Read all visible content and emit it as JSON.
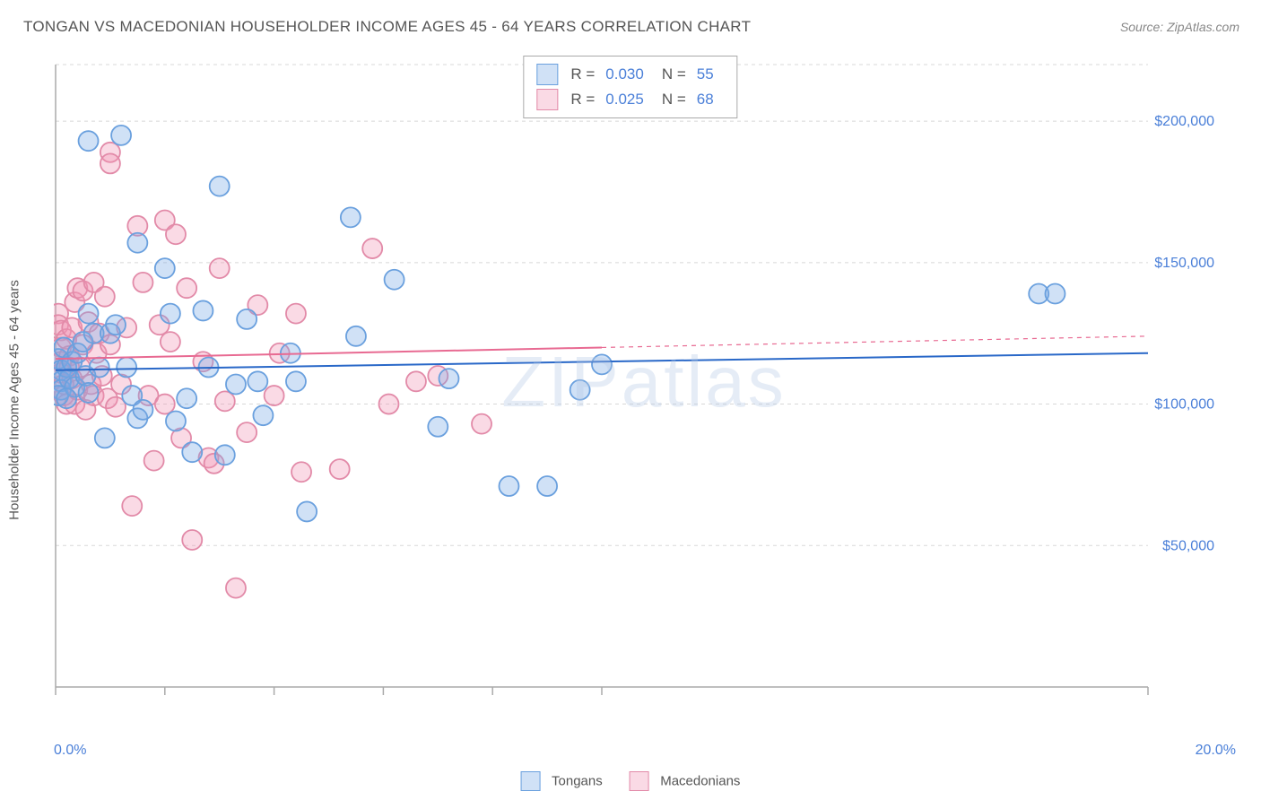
{
  "title": "TONGAN VS MACEDONIAN HOUSEHOLDER INCOME AGES 45 - 64 YEARS CORRELATION CHART",
  "source": "Source: ZipAtlas.com",
  "y_axis_label": "Householder Income Ages 45 - 64 years",
  "watermark": "ZIPatlas",
  "chart": {
    "type": "scatter",
    "background_color": "#ffffff",
    "grid_color": "#d8d8d8",
    "axis_color": "#aaaaaa",
    "xlim": [
      0,
      20
    ],
    "ylim": [
      0,
      220000
    ],
    "y_ticks": [
      50000,
      100000,
      150000,
      200000
    ],
    "y_tick_labels": [
      "$50,000",
      "$100,000",
      "$150,000",
      "$200,000"
    ],
    "y_tick_color": "#4a7fd8",
    "x_tick_positions": [
      0,
      2,
      4,
      6,
      8,
      10,
      20
    ],
    "x_start_label": "0.0%",
    "x_end_label": "20.0%",
    "marker_radius": 11,
    "marker_stroke_width": 1.8,
    "line_width": 2,
    "series": [
      {
        "name": "Tongans",
        "color_fill": "rgba(120,170,230,0.35)",
        "color_stroke": "#6aa0de",
        "line_color": "#2968c8",
        "trend": {
          "y_start": 112000,
          "y_end": 118000,
          "x_visible_end": 20
        },
        "points": [
          [
            0.05,
            116000
          ],
          [
            0.1,
            112000
          ],
          [
            0.1,
            108000
          ],
          [
            0.1,
            105000
          ],
          [
            0.05,
            103000
          ],
          [
            0.15,
            120000
          ],
          [
            0.2,
            113000
          ],
          [
            0.25,
            109000
          ],
          [
            0.3,
            115000
          ],
          [
            0.35,
            106000
          ],
          [
            0.4,
            118000
          ],
          [
            0.5,
            122000
          ],
          [
            0.55,
            110000
          ],
          [
            0.6,
            104000
          ],
          [
            0.7,
            125000
          ],
          [
            0.8,
            113000
          ],
          [
            0.6,
            193000
          ],
          [
            0.6,
            132000
          ],
          [
            1.5,
            157000
          ],
          [
            0.9,
            88000
          ],
          [
            1.0,
            125000
          ],
          [
            1.1,
            128000
          ],
          [
            1.2,
            195000
          ],
          [
            1.3,
            113000
          ],
          [
            1.4,
            103000
          ],
          [
            1.5,
            95000
          ],
          [
            1.6,
            98000
          ],
          [
            2.0,
            148000
          ],
          [
            2.1,
            132000
          ],
          [
            2.2,
            94000
          ],
          [
            2.4,
            102000
          ],
          [
            2.5,
            83000
          ],
          [
            2.7,
            133000
          ],
          [
            2.8,
            113000
          ],
          [
            3.0,
            177000
          ],
          [
            3.1,
            82000
          ],
          [
            3.3,
            107000
          ],
          [
            3.5,
            130000
          ],
          [
            3.7,
            108000
          ],
          [
            3.8,
            96000
          ],
          [
            4.3,
            118000
          ],
          [
            4.4,
            108000
          ],
          [
            4.6,
            62000
          ],
          [
            5.4,
            166000
          ],
          [
            5.5,
            124000
          ],
          [
            6.2,
            144000
          ],
          [
            7.0,
            92000
          ],
          [
            7.2,
            109000
          ],
          [
            8.3,
            71000
          ],
          [
            9.0,
            71000
          ],
          [
            9.6,
            105000
          ],
          [
            10.0,
            114000
          ],
          [
            18.0,
            139000
          ],
          [
            18.3,
            139000
          ],
          [
            0.2,
            102000
          ]
        ]
      },
      {
        "name": "Macedonians",
        "color_fill": "rgba(240,150,180,0.35)",
        "color_stroke": "#e28aa8",
        "line_color": "#e86a92",
        "trend": {
          "y_start": 116000,
          "y_end": 124000,
          "x_visible_end": 10
        },
        "points": [
          [
            0.05,
            132000
          ],
          [
            0.05,
            128000
          ],
          [
            0.1,
            126000
          ],
          [
            0.1,
            120000
          ],
          [
            0.1,
            115000
          ],
          [
            0.1,
            111000
          ],
          [
            0.15,
            107000
          ],
          [
            0.15,
            103000
          ],
          [
            0.2,
            100000
          ],
          [
            0.2,
            123000
          ],
          [
            0.25,
            117000
          ],
          [
            0.25,
            113000
          ],
          [
            0.3,
            127000
          ],
          [
            0.3,
            109000
          ],
          [
            0.35,
            136000
          ],
          [
            0.35,
            100000
          ],
          [
            0.4,
            141000
          ],
          [
            0.4,
            105000
          ],
          [
            0.45,
            113000
          ],
          [
            0.5,
            140000
          ],
          [
            0.5,
            121000
          ],
          [
            0.55,
            98000
          ],
          [
            0.6,
            129000
          ],
          [
            0.65,
            107000
          ],
          [
            0.7,
            143000
          ],
          [
            0.7,
            103000
          ],
          [
            0.75,
            118000
          ],
          [
            0.8,
            125000
          ],
          [
            0.85,
            110000
          ],
          [
            0.9,
            138000
          ],
          [
            0.95,
            102000
          ],
          [
            1.0,
            121000
          ],
          [
            1.0,
            189000
          ],
          [
            1.0,
            185000
          ],
          [
            1.1,
            99000
          ],
          [
            1.2,
            107000
          ],
          [
            1.3,
            127000
          ],
          [
            1.4,
            64000
          ],
          [
            1.5,
            163000
          ],
          [
            1.6,
            143000
          ],
          [
            1.7,
            103000
          ],
          [
            1.8,
            80000
          ],
          [
            1.9,
            128000
          ],
          [
            2.0,
            165000
          ],
          [
            2.0,
            100000
          ],
          [
            2.1,
            122000
          ],
          [
            2.2,
            160000
          ],
          [
            2.3,
            88000
          ],
          [
            2.4,
            141000
          ],
          [
            2.5,
            52000
          ],
          [
            2.7,
            115000
          ],
          [
            2.8,
            81000
          ],
          [
            2.9,
            79000
          ],
          [
            3.0,
            148000
          ],
          [
            3.1,
            101000
          ],
          [
            3.3,
            35000
          ],
          [
            3.5,
            90000
          ],
          [
            3.7,
            135000
          ],
          [
            4.0,
            103000
          ],
          [
            4.1,
            118000
          ],
          [
            4.4,
            132000
          ],
          [
            4.5,
            76000
          ],
          [
            5.2,
            77000
          ],
          [
            5.8,
            155000
          ],
          [
            6.1,
            100000
          ],
          [
            6.6,
            108000
          ],
          [
            7.0,
            110000
          ],
          [
            7.8,
            93000
          ]
        ]
      }
    ]
  },
  "top_legend": {
    "rows": [
      {
        "r_label": "R =",
        "r_value": "0.030",
        "n_label": "N =",
        "n_value": "55",
        "swatch_fill": "rgba(120,170,230,0.35)",
        "swatch_stroke": "#6aa0de"
      },
      {
        "r_label": "R =",
        "r_value": "0.025",
        "n_label": "N =",
        "n_value": "68",
        "swatch_fill": "rgba(240,150,180,0.35)",
        "swatch_stroke": "#e28aa8"
      }
    ]
  },
  "bottom_legend": [
    {
      "label": "Tongans",
      "swatch_fill": "rgba(120,170,230,0.35)",
      "swatch_stroke": "#6aa0de"
    },
    {
      "label": "Macedonians",
      "swatch_fill": "rgba(240,150,180,0.35)",
      "swatch_stroke": "#e28aa8"
    }
  ]
}
